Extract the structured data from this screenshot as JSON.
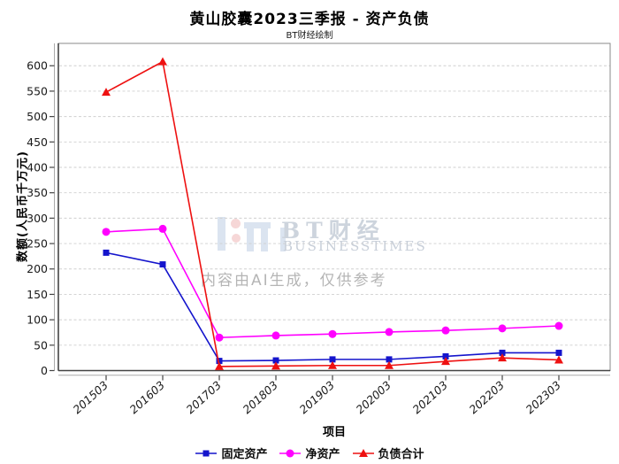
{
  "chart_data": {
    "type": "line",
    "title": "黄山胶囊2023三季报 - 资产负债",
    "subtitle": "BT财经绘制",
    "xlabel": "项目",
    "ylabel": "数额(人民币千万元)",
    "categories": [
      "201503",
      "201603",
      "201703",
      "201803",
      "201903",
      "202003",
      "202103",
      "202203",
      "202303"
    ],
    "series": [
      {
        "name": "固定资产",
        "marker": "square",
        "color": "#1414cc",
        "values": [
          232,
          209,
          19,
          20,
          22,
          22,
          28,
          35,
          35
        ]
      },
      {
        "name": "净资产",
        "marker": "circle",
        "color": "#ff00ff",
        "values": [
          273,
          279,
          65,
          69,
          72,
          76,
          79,
          83,
          88
        ]
      },
      {
        "name": "负债合计",
        "marker": "triangle",
        "color": "#ee1111",
        "values": [
          548,
          608,
          8,
          9,
          10,
          10,
          18,
          25,
          21
        ]
      }
    ],
    "ylim": [
      0,
      644
    ],
    "yticks": [
      0,
      50,
      100,
      150,
      200,
      250,
      300,
      350,
      400,
      450,
      500,
      550,
      600
    ],
    "grid": "horizontal-dashed",
    "legend_position": "bottom-center"
  },
  "watermark": {
    "logo_text": "BT财经",
    "logo_subtext": "BUSINESSTIMES",
    "notice": "内容由AI生成，仅供参考"
  },
  "style_colors": {
    "gridline": "#cfcfcf",
    "plot_border": "#8a8a8a",
    "spine": "#444444",
    "offset_axis": "#aaaaaa",
    "tick_label": "#1a1a1a"
  }
}
